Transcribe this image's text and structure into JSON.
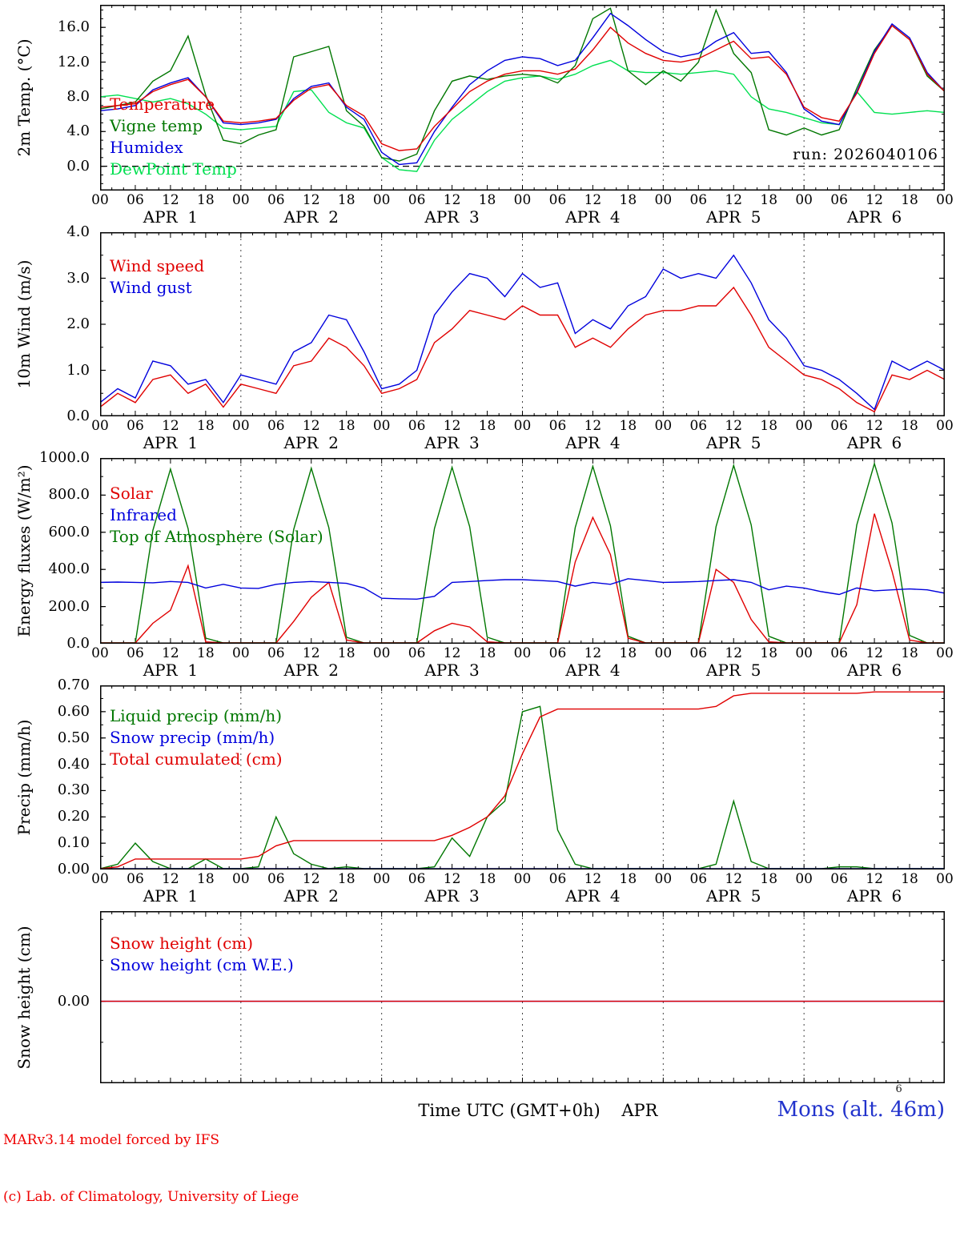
{
  "time_axis": {
    "hour_labels": [
      "00",
      "06",
      "12",
      "18"
    ],
    "end_label": "00",
    "day_labels": [
      "APR  1",
      "APR  2",
      "APR  3",
      "APR  4",
      "APR  5",
      "APR  6"
    ]
  },
  "footer": {
    "credit_line1": "MARv3.14 model forced by IFS",
    "credit_line2": "(c) Lab. of Climatology, University of Liege",
    "center_label": "Time UTC (GMT+0h)    APR",
    "station_label": "Mons (alt. 46m)",
    "station_super": "6"
  },
  "chart_data": [
    {
      "type": "line",
      "name": "temperature",
      "ylabel": "2m Temp. (°C)",
      "ylim": [
        -2.8,
        18.6
      ],
      "yticks": [
        0,
        4,
        8,
        12,
        16
      ],
      "ytick_labels": [
        "0.0",
        "4.0",
        "8.0",
        "12.0",
        "16.0"
      ],
      "yminor": 1,
      "zero_line": true,
      "annotation": "run: 2026040106",
      "legend_y": 112,
      "legend": [
        {
          "label": "Temperature",
          "color": "#e00000"
        },
        {
          "label": "Vigne temp",
          "color": "#007700"
        },
        {
          "label": "Humidex",
          "color": "#0000dd"
        },
        {
          "label": "DewPoint Temp",
          "color": "#00e050"
        }
      ],
      "x_hours_step": 3,
      "series": [
        {
          "name": "DewPoint Temp",
          "color": "#00e050",
          "values": [
            8.0,
            8.2,
            7.8,
            7.4,
            7.8,
            7.2,
            6.0,
            4.4,
            4.2,
            4.4,
            4.6,
            8.6,
            8.8,
            6.2,
            5.0,
            4.4,
            1.0,
            -0.4,
            -0.6,
            3.0,
            5.4,
            7.0,
            8.6,
            9.8,
            10.2,
            10.4,
            10.0,
            10.6,
            11.6,
            12.2,
            11.0,
            10.8,
            10.8,
            10.6,
            10.8,
            11.0,
            10.6,
            8.0,
            6.6,
            6.2,
            5.6,
            5.0,
            4.8,
            8.6,
            6.2,
            6.0,
            6.2,
            6.4,
            6.2
          ]
        },
        {
          "name": "Vigne temp",
          "color": "#007700",
          "values": [
            6.6,
            7.0,
            7.4,
            9.8,
            11.0,
            15.0,
            8.2,
            3.0,
            2.6,
            3.6,
            4.2,
            12.6,
            13.2,
            13.8,
            6.4,
            4.6,
            1.0,
            0.6,
            1.4,
            6.4,
            9.8,
            10.4,
            10.0,
            10.4,
            10.6,
            10.4,
            9.6,
            11.6,
            17.0,
            18.2,
            11.0,
            9.4,
            11.0,
            9.8,
            12.0,
            18.0,
            13.0,
            10.8,
            4.2,
            3.6,
            4.4,
            3.6,
            4.2,
            9.0,
            13.4,
            16.2,
            14.6,
            10.4,
            8.6
          ]
        },
        {
          "name": "Humidex",
          "color": "#0000dd",
          "values": [
            6.4,
            6.6,
            7.0,
            8.8,
            9.6,
            10.2,
            8.0,
            5.0,
            4.8,
            5.0,
            5.4,
            7.8,
            9.2,
            9.6,
            6.8,
            5.4,
            1.6,
            0.2,
            0.4,
            4.0,
            6.8,
            9.4,
            11.0,
            12.2,
            12.6,
            12.4,
            11.6,
            12.2,
            14.8,
            17.6,
            16.2,
            14.6,
            13.2,
            12.6,
            13.0,
            14.4,
            15.4,
            13.0,
            13.2,
            10.8,
            6.6,
            5.2,
            4.8,
            8.6,
            13.2,
            16.4,
            14.8,
            10.8,
            8.6
          ]
        },
        {
          "name": "Temperature",
          "color": "#e00000",
          "values": [
            6.8,
            7.0,
            7.2,
            8.6,
            9.4,
            10.0,
            8.0,
            5.2,
            5.0,
            5.2,
            5.5,
            7.6,
            9.0,
            9.4,
            7.0,
            5.8,
            2.6,
            1.8,
            2.0,
            4.6,
            6.6,
            8.6,
            9.8,
            10.6,
            11.0,
            11.0,
            10.6,
            11.2,
            13.4,
            16.0,
            14.2,
            13.0,
            12.2,
            12.0,
            12.4,
            13.4,
            14.4,
            12.4,
            12.6,
            10.6,
            6.8,
            5.6,
            5.2,
            8.4,
            13.0,
            16.2,
            14.6,
            10.6,
            8.6
          ]
        }
      ]
    },
    {
      "type": "line",
      "name": "wind",
      "ylabel": "10m Wind (m/s)",
      "ylim": [
        0,
        4
      ],
      "yticks": [
        0,
        1,
        2,
        3,
        4
      ],
      "ytick_labels": [
        "0.0",
        "1.0",
        "2.0",
        "3.0",
        "4.0"
      ],
      "yminor": 0.5,
      "zero_line": false,
      "legend_y": 30,
      "legend": [
        {
          "label": "Wind speed",
          "color": "#e00000"
        },
        {
          "label": "Wind gust",
          "color": "#0000dd"
        }
      ],
      "x_hours_step": 3,
      "series": [
        {
          "name": "Wind gust",
          "color": "#0000dd",
          "values": [
            0.3,
            0.6,
            0.4,
            1.2,
            1.1,
            0.7,
            0.8,
            0.3,
            0.9,
            0.8,
            0.7,
            1.4,
            1.6,
            2.2,
            2.1,
            1.4,
            0.6,
            0.7,
            1.0,
            2.2,
            2.7,
            3.1,
            3.0,
            2.6,
            3.1,
            2.8,
            2.9,
            1.8,
            2.1,
            1.9,
            2.4,
            2.6,
            3.2,
            3.0,
            3.1,
            3.0,
            3.5,
            2.9,
            2.1,
            1.7,
            1.1,
            1.0,
            0.8,
            0.5,
            0.15,
            1.2,
            1.0,
            1.2,
            1.0
          ]
        },
        {
          "name": "Wind speed",
          "color": "#e00000",
          "values": [
            0.2,
            0.5,
            0.3,
            0.8,
            0.9,
            0.5,
            0.7,
            0.2,
            0.7,
            0.6,
            0.5,
            1.1,
            1.2,
            1.7,
            1.5,
            1.1,
            0.5,
            0.6,
            0.8,
            1.6,
            1.9,
            2.3,
            2.2,
            2.1,
            2.4,
            2.2,
            2.2,
            1.5,
            1.7,
            1.5,
            1.9,
            2.2,
            2.3,
            2.3,
            2.4,
            2.4,
            2.8,
            2.2,
            1.5,
            1.2,
            0.9,
            0.8,
            0.6,
            0.3,
            0.1,
            0.9,
            0.8,
            1.0,
            0.8
          ]
        }
      ]
    },
    {
      "type": "line",
      "name": "energy-fluxes",
      "ylabel": "Energy fluxes (W/m²)",
      "ylim": [
        0,
        1000
      ],
      "yticks": [
        0,
        200,
        400,
        600,
        800,
        1000
      ],
      "ytick_labels": [
        "0.0",
        "200.0",
        "400.0",
        "600.0",
        "800.0",
        "1000.0"
      ],
      "yminor": 100,
      "zero_line": false,
      "legend_y": 32,
      "legend": [
        {
          "label": "Solar",
          "color": "#e00000"
        },
        {
          "label": "Infrared",
          "color": "#0000dd"
        },
        {
          "label": "Top of Atmosphere (Solar)",
          "color": "#007700"
        }
      ],
      "x_hours_step": 3,
      "series": [
        {
          "name": "Top of Atmosphere (Solar)",
          "color": "#007700",
          "values": [
            0,
            0,
            0,
            610,
            940,
            620,
            30,
            0,
            0,
            0,
            0,
            615,
            945,
            625,
            35,
            0,
            0,
            0,
            0,
            620,
            950,
            630,
            35,
            0,
            0,
            0,
            0,
            625,
            955,
            635,
            40,
            0,
            0,
            0,
            0,
            630,
            960,
            640,
            40,
            0,
            0,
            0,
            0,
            640,
            970,
            650,
            45,
            0,
            0
          ]
        },
        {
          "name": "Solar",
          "color": "#e00000",
          "values": [
            0,
            0,
            0,
            110,
            180,
            420,
            10,
            0,
            0,
            0,
            0,
            120,
            250,
            330,
            20,
            0,
            0,
            0,
            0,
            70,
            110,
            90,
            10,
            0,
            0,
            0,
            0,
            440,
            680,
            480,
            30,
            0,
            0,
            0,
            0,
            400,
            330,
            130,
            10,
            0,
            0,
            0,
            0,
            210,
            700,
            390,
            20,
            0,
            0
          ]
        },
        {
          "name": "Infrared",
          "color": "#0000dd",
          "values": [
            330,
            332,
            330,
            328,
            335,
            330,
            300,
            320,
            300,
            298,
            320,
            330,
            335,
            330,
            325,
            300,
            245,
            242,
            240,
            255,
            330,
            335,
            340,
            345,
            345,
            340,
            335,
            310,
            330,
            320,
            350,
            340,
            330,
            332,
            335,
            340,
            345,
            330,
            290,
            310,
            300,
            280,
            265,
            300,
            285,
            290,
            295,
            290,
            272
          ]
        }
      ]
    },
    {
      "type": "line",
      "name": "precip",
      "ylabel": "Precip (mm/h)",
      "ylim": [
        0,
        0.7
      ],
      "yticks": [
        0,
        0.1,
        0.2,
        0.3,
        0.4,
        0.5,
        0.6,
        0.7
      ],
      "ytick_labels": [
        "0.00",
        "0.10",
        "0.20",
        "0.30",
        "0.40",
        "0.50",
        "0.60",
        "0.70"
      ],
      "yminor": 0.05,
      "zero_line": false,
      "legend_y": 26,
      "legend": [
        {
          "label": "Liquid precip (mm/h)",
          "color": "#007700"
        },
        {
          "label": "Snow precip (mm/h)",
          "color": "#0000dd"
        },
        {
          "label": "Total cumulated (cm)",
          "color": "#e00000"
        }
      ],
      "x_hours_step": 3,
      "series": [
        {
          "name": "Liquid precip",
          "color": "#007700",
          "values": [
            0,
            0.02,
            0.1,
            0.03,
            0,
            0,
            0.04,
            0,
            0,
            0.01,
            0.2,
            0.06,
            0.02,
            0,
            0.01,
            0,
            0,
            0,
            0,
            0.01,
            0.12,
            0.05,
            0.2,
            0.26,
            0.6,
            0.62,
            0.15,
            0.02,
            0,
            0,
            0,
            0,
            0,
            0,
            0,
            0.02,
            0.26,
            0.03,
            0,
            0,
            0,
            0,
            0.01,
            0.01,
            0,
            0,
            0,
            0,
            0
          ]
        },
        {
          "name": "Snow precip",
          "color": "#0000dd",
          "values": [
            0,
            0,
            0,
            0,
            0,
            0,
            0,
            0,
            0,
            0,
            0,
            0,
            0,
            0,
            0,
            0,
            0,
            0,
            0,
            0,
            0,
            0,
            0,
            0,
            0,
            0,
            0,
            0,
            0,
            0,
            0,
            0,
            0,
            0,
            0,
            0,
            0,
            0,
            0,
            0,
            0,
            0,
            0,
            0,
            0,
            0,
            0,
            0,
            0
          ]
        },
        {
          "name": "Total cumulated",
          "color": "#e00000",
          "values": [
            0.0,
            0.01,
            0.04,
            0.04,
            0.04,
            0.04,
            0.04,
            0.04,
            0.04,
            0.05,
            0.09,
            0.11,
            0.11,
            0.11,
            0.11,
            0.11,
            0.11,
            0.11,
            0.11,
            0.11,
            0.13,
            0.16,
            0.2,
            0.28,
            0.44,
            0.58,
            0.61,
            0.61,
            0.61,
            0.61,
            0.61,
            0.61,
            0.61,
            0.61,
            0.61,
            0.62,
            0.66,
            0.67,
            0.67,
            0.67,
            0.67,
            0.67,
            0.67,
            0.67,
            0.675,
            0.675,
            0.675,
            0.675,
            0.675
          ]
        }
      ]
    },
    {
      "type": "line",
      "name": "snow-height",
      "ylabel": "Snow height (cm)",
      "ylim": [
        -1.0,
        1.1
      ],
      "yticks": [
        0
      ],
      "ytick_labels": [
        "0.00"
      ],
      "yminor": 0.5,
      "zero_line": false,
      "legend_y": 28,
      "legend": [
        {
          "label": "Snow height (cm)",
          "color": "#e00000"
        },
        {
          "label": "Snow height (cm W.E.)",
          "color": "#0000dd"
        }
      ],
      "x_hours_step": 3,
      "series": [
        {
          "name": "Snow height W.E.",
          "color": "#0000dd",
          "values": [
            0,
            0,
            0,
            0,
            0,
            0,
            0,
            0,
            0,
            0,
            0,
            0,
            0,
            0,
            0,
            0,
            0,
            0,
            0,
            0,
            0,
            0,
            0,
            0,
            0,
            0,
            0,
            0,
            0,
            0,
            0,
            0,
            0,
            0,
            0,
            0,
            0,
            0,
            0,
            0,
            0,
            0,
            0,
            0,
            0,
            0,
            0,
            0,
            0
          ]
        },
        {
          "name": "Snow height",
          "color": "#e00000",
          "values": [
            0,
            0,
            0,
            0,
            0,
            0,
            0,
            0,
            0,
            0,
            0,
            0,
            0,
            0,
            0,
            0,
            0,
            0,
            0,
            0,
            0,
            0,
            0,
            0,
            0,
            0,
            0,
            0,
            0,
            0,
            0,
            0,
            0,
            0,
            0,
            0,
            0,
            0,
            0,
            0,
            0,
            0,
            0,
            0,
            0,
            0,
            0,
            0,
            0
          ]
        }
      ]
    }
  ]
}
